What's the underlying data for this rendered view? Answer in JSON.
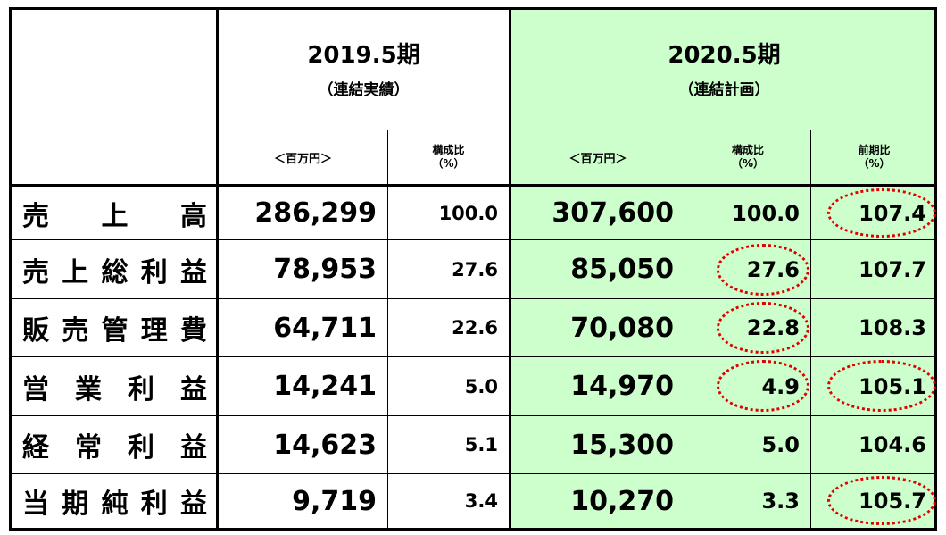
{
  "header": {
    "actual_period": "2019.5期",
    "actual_note": "（連結実績）",
    "plan_period": "2020.5期",
    "plan_note": "（連結計画）",
    "unit_actual": "＜百万円＞",
    "ratio_actual": [
      "構成比",
      "（%）"
    ],
    "unit_plan": "＜百万円＞",
    "ratio_plan": [
      "構成比",
      "（%）"
    ],
    "yoy_plan": [
      "前期比",
      "（%）"
    ]
  },
  "rows": [
    {
      "label_chars": [
        "売",
        "上",
        "高"
      ],
      "actual": "286,299",
      "actual_ratio": "100.0",
      "plan": "307,600",
      "plan_ratio": "100.0",
      "yoy": "107.4"
    },
    {
      "label_chars": [
        "売",
        "上",
        "総",
        "利",
        "益"
      ],
      "actual": "78,953",
      "actual_ratio": "27.6",
      "plan": "85,050",
      "plan_ratio": "27.6",
      "yoy": "107.7"
    },
    {
      "label_chars": [
        "販",
        "売",
        "管",
        "理",
        "費"
      ],
      "actual": "64,711",
      "actual_ratio": "22.6",
      "plan": "70,080",
      "plan_ratio": "22.8",
      "yoy": "108.3"
    },
    {
      "label_chars": [
        "営",
        "業",
        "利",
        "益"
      ],
      "actual": "14,241",
      "actual_ratio": "5.0",
      "plan": "14,970",
      "plan_ratio": "4.9",
      "yoy": "105.1"
    },
    {
      "label_chars": [
        "経",
        "常",
        "利",
        "益"
      ],
      "actual": "14,623",
      "actual_ratio": "5.1",
      "plan": "15,300",
      "plan_ratio": "5.0",
      "yoy": "104.6"
    },
    {
      "label_chars": [
        "当",
        "期",
        "純",
        "利",
        "益"
      ],
      "actual": "9,719",
      "actual_ratio": "3.4",
      "plan": "10,270",
      "plan_ratio": "3.3",
      "yoy": "105.7"
    }
  ],
  "highlight_color": "#e00000",
  "plan_bg_color": "#ccffcc"
}
